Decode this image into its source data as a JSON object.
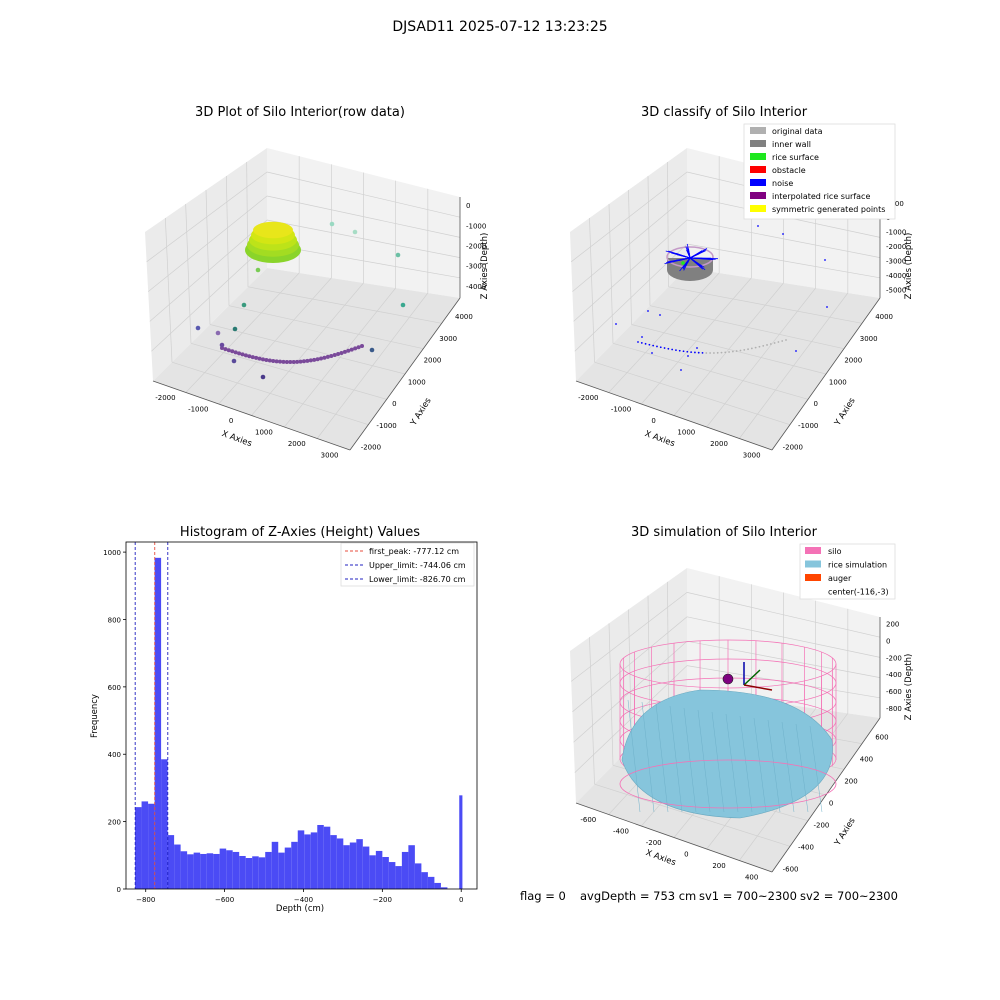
{
  "suptitle": "DJSAD11 2025-07-12 13:23:25",
  "colors": {
    "histogram_bar": "#4b4bf5",
    "first_peak_line": "#e74c3c",
    "limit_line": "#2020c0",
    "pane_light": "#f2f2f2",
    "pane_mid": "#ebebeb",
    "pane_dark": "#e4e4e4",
    "grid": "#d0d0d0",
    "silo_wire": "#f472b6",
    "rice_surface": "#86c5dc"
  },
  "panels": {
    "raw": {
      "title": "3D Plot of Silo Interior(row data)",
      "xlabel": "X Axies",
      "ylabel": "Y Axies",
      "zlabel": "Z Axies (Depth)",
      "xticks": [
        "-2000",
        "-1000",
        "0",
        "1000",
        "2000",
        "3000"
      ],
      "yticks": [
        "-2000",
        "-1000",
        "0",
        "1000",
        "2000",
        "3000",
        "4000"
      ],
      "zticks": [
        "0",
        "-1000",
        "-2000",
        "-3000",
        "-4000"
      ]
    },
    "classify": {
      "title": "3D classify of Silo Interior",
      "xlabel": "X Axies",
      "ylabel": "Y Axies",
      "zlabel": "Z Axies (Depth)",
      "xticks": [
        "-2000",
        "-1000",
        "0",
        "1000",
        "2000",
        "3000"
      ],
      "yticks": [
        "-2000",
        "-1000",
        "0",
        "1000",
        "2000",
        "3000",
        "4000"
      ],
      "zticks": [
        "1000",
        "0",
        "-1000",
        "-2000",
        "-3000",
        "-4000",
        "-5000"
      ],
      "legend": [
        {
          "label": "original data",
          "color": "#b0b0b0"
        },
        {
          "label": "inner wall",
          "color": "#808080"
        },
        {
          "label": "rice surface",
          "color": "#1ee81e"
        },
        {
          "label": "obstacle",
          "color": "#ff0000"
        },
        {
          "label": "noise",
          "color": "#0000ff"
        },
        {
          "label": "interpolated rice surface",
          "color": "#800080"
        },
        {
          "label": "symmetric generated points",
          "color": "#ffff00"
        }
      ]
    },
    "simulation": {
      "title": "3D simulation of Silo Interior",
      "xlabel": "X Axies",
      "ylabel": "Y Axies",
      "zlabel": "Z Axies (Depth)",
      "xticks": [
        "-600",
        "-400",
        "-200",
        "0",
        "200",
        "400"
      ],
      "yticks": [
        "-600",
        "-400",
        "-200",
        "0",
        "200",
        "400",
        "600"
      ],
      "zticks": [
        "200",
        "0",
        "-200",
        "-400",
        "-600",
        "-800"
      ],
      "legend": [
        {
          "label": "silo",
          "color": "#f472b6"
        },
        {
          "label": "rice simulation",
          "color": "#86c5dc"
        },
        {
          "label": "auger",
          "color": "#ff4500"
        },
        {
          "label": "center(-116,-3)",
          "color": ""
        }
      ]
    }
  },
  "footer": {
    "flag": "flag = 0",
    "avg": "avgDepth = 753 cm",
    "sv1": "sv1 = 700~2300",
    "sv2": "sv2 = 700~2300"
  },
  "chart_data": [
    {
      "type": "scatter",
      "title": "3D Plot of Silo Interior(row data)",
      "xlabel": "X Axies",
      "ylabel": "Y Axies",
      "zlabel": "Z Axies (Depth)",
      "xlim": [
        -2500,
        3500
      ],
      "ylim": [
        -2200,
        4500
      ],
      "zlim": [
        -4500,
        300
      ],
      "projection": "3d",
      "description_series": [
        {
          "points": "dense cluster of points near z ~ -770, colored yellow-green by depth"
        },
        {
          "points": "arc of purple points near z ~ -4200 along the floor"
        }
      ]
    },
    {
      "type": "scatter",
      "title": "3D classify of Silo Interior",
      "xlabel": "X Axies",
      "ylabel": "Y Axies",
      "zlabel": "Z Axies (Depth)",
      "xlim": [
        -2500,
        3500
      ],
      "ylim": [
        -2200,
        4500
      ],
      "zlim": [
        -5500,
        1300
      ],
      "projection": "3d",
      "legend_location": "upper right"
    },
    {
      "type": "bar",
      "title": "Histogram of Z-Axies (Height) Values",
      "xlabel": "Depth (cm)",
      "ylabel": "Frequency",
      "xlim": [
        -850,
        40
      ],
      "ylim": [
        0,
        1030
      ],
      "xticks": [
        -800,
        -600,
        -400,
        -200,
        0
      ],
      "yticks": [
        0,
        200,
        400,
        600,
        800,
        1000
      ],
      "bin_width": 16.5,
      "bin_start": -827,
      "values": [
        243,
        260,
        253,
        983,
        385,
        160,
        132,
        112,
        103,
        108,
        104,
        106,
        104,
        120,
        115,
        110,
        98,
        92,
        97,
        94,
        110,
        140,
        108,
        123,
        140,
        174,
        162,
        168,
        190,
        185,
        160,
        150,
        130,
        138,
        148,
        126,
        100,
        113,
        95,
        80,
        68,
        110,
        130,
        76,
        50,
        36,
        18,
        5,
        278
      ],
      "last_bin_x": -5,
      "lines": [
        {
          "name": "first_peak: -777.12 cm",
          "x": -777.12,
          "color": "#e74c3c",
          "style": "dashed"
        },
        {
          "name": "Upper_limit: -744.06 cm",
          "x": -744.06,
          "color": "#2020c0",
          "style": "dashed"
        },
        {
          "name": "Lower_limit: -826.70 cm",
          "x": -826.7,
          "color": "#2020c0",
          "style": "dashed"
        }
      ],
      "legend_location": "upper right"
    },
    {
      "type": "surface",
      "title": "3D simulation of Silo Interior",
      "xlabel": "X Axies",
      "ylabel": "Y Axies",
      "zlabel": "Z Axies (Depth)",
      "projection": "3d",
      "legend_location": "upper right"
    }
  ]
}
